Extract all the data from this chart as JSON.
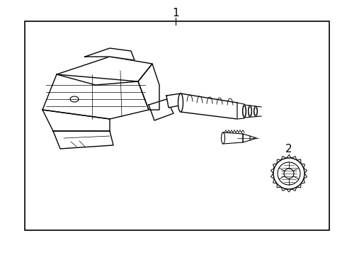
{
  "bg_color": "#ffffff",
  "line_color": "#000000",
  "label1": "1",
  "label2": "2",
  "figsize": [
    4.9,
    3.6
  ],
  "dpi": 100,
  "border": [
    35,
    30,
    430,
    295
  ]
}
